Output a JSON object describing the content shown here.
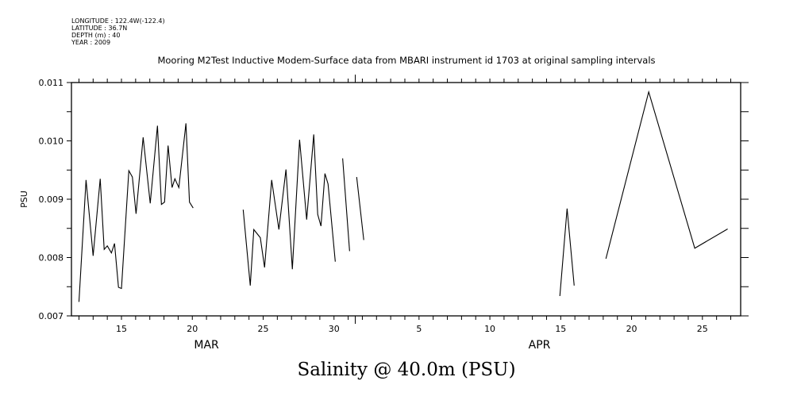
{
  "chart_data": {
    "type": "line",
    "header_info": [
      "LONGITUDE : 122.4W(-122.4)",
      "LATITUDE : 36.7N",
      "DEPTH (m) : 40",
      "YEAR : 2009"
    ],
    "title": "Mooring M2Test Inductive Modem-Surface data from MBARI instrument id 1703 at original sampling intervals",
    "bottom_title": "Salinity @ 40.0m (PSU)",
    "ylabel": "PSU",
    "xlabel": "",
    "x_units": "day index (Mar 1 = 1, Apr 1 = 32)",
    "xlim": [
      11.47,
      58.7
    ],
    "ylim": [
      0.007,
      0.011
    ],
    "yticks": [
      {
        "value": 0.007,
        "label": "0.007"
      },
      {
        "value": 0.008,
        "label": "0.008"
      },
      {
        "value": 0.009,
        "label": "0.009"
      },
      {
        "value": 0.01,
        "label": "0.010"
      },
      {
        "value": 0.011,
        "label": "0.011"
      }
    ],
    "xticks": [
      {
        "value": 15,
        "label": "15"
      },
      {
        "value": 20,
        "label": "20"
      },
      {
        "value": 25,
        "label": "25"
      },
      {
        "value": 30,
        "label": "30"
      },
      {
        "value": 36,
        "label": "5"
      },
      {
        "value": 41,
        "label": "10"
      },
      {
        "value": 46,
        "label": "15"
      },
      {
        "value": 51,
        "label": "20"
      },
      {
        "value": 56,
        "label": "25"
      }
    ],
    "month_labels": [
      {
        "value": 21,
        "label": "MAR"
      },
      {
        "value": 44.5,
        "label": "APR"
      }
    ],
    "grid": false,
    "segments": [
      [
        [
          12.0,
          0.00724
        ],
        [
          12.5,
          0.00933
        ],
        [
          13.0,
          0.00803
        ],
        [
          13.5,
          0.00935
        ],
        [
          13.78,
          0.00814
        ],
        [
          14.0,
          0.0082
        ],
        [
          14.29,
          0.00808
        ],
        [
          14.51,
          0.00824
        ],
        [
          14.79,
          0.00749
        ],
        [
          15.0,
          0.00747
        ],
        [
          15.52,
          0.00949
        ],
        [
          15.77,
          0.00938
        ],
        [
          16.03,
          0.00875
        ],
        [
          16.53,
          0.01006
        ],
        [
          17.03,
          0.00893
        ],
        [
          17.54,
          0.01026
        ],
        [
          17.82,
          0.00891
        ],
        [
          18.04,
          0.00895
        ],
        [
          18.29,
          0.00992
        ],
        [
          18.57,
          0.0092
        ],
        [
          18.77,
          0.00935
        ],
        [
          19.05,
          0.0092
        ],
        [
          19.55,
          0.0103
        ],
        [
          19.8,
          0.00895
        ],
        [
          20.06,
          0.00885
        ]
      ],
      [
        [
          23.59,
          0.00882
        ],
        [
          24.09,
          0.00752
        ],
        [
          24.34,
          0.00848
        ],
        [
          24.8,
          0.00834
        ],
        [
          25.1,
          0.00783
        ],
        [
          25.6,
          0.00933
        ],
        [
          26.11,
          0.00848
        ],
        [
          26.61,
          0.00951
        ],
        [
          27.06,
          0.0078
        ],
        [
          27.57,
          0.01002
        ],
        [
          28.07,
          0.00865
        ],
        [
          28.57,
          0.01011
        ],
        [
          28.85,
          0.00874
        ],
        [
          29.08,
          0.00854
        ],
        [
          29.36,
          0.00944
        ],
        [
          29.58,
          0.00926
        ],
        [
          30.09,
          0.00793
        ]
      ],
      [
        [
          30.61,
          0.0097
        ],
        [
          31.1,
          0.00811
        ]
      ],
      [
        [
          31.6,
          0.00938
        ],
        [
          32.1,
          0.0083
        ]
      ],
      [
        [
          45.94,
          0.00734
        ],
        [
          46.45,
          0.00884
        ],
        [
          46.95,
          0.00752
        ]
      ],
      [
        [
          49.19,
          0.00798
        ],
        [
          52.21,
          0.01084
        ],
        [
          55.46,
          0.00816
        ],
        [
          57.78,
          0.00849
        ]
      ]
    ]
  }
}
